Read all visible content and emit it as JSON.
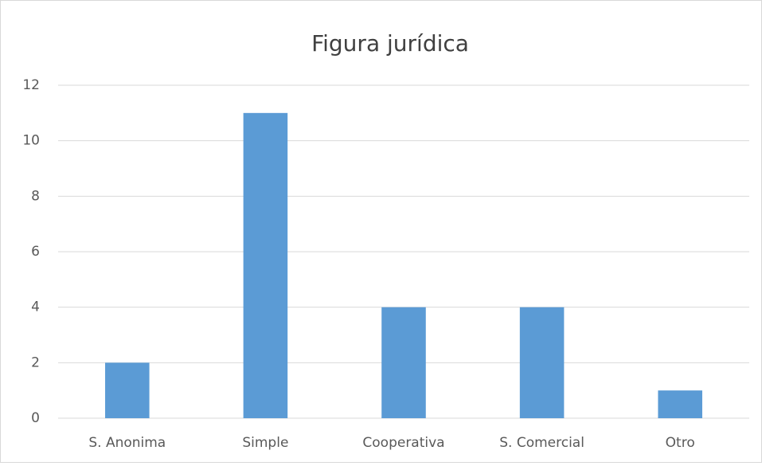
{
  "chart_data": {
    "type": "bar",
    "title": "Figura jurídica",
    "categories": [
      "S. Anonima",
      "Simple",
      "Cooperativa",
      "S. Comercial",
      "Otro"
    ],
    "values": [
      2,
      11,
      4,
      4,
      1
    ],
    "color": "#5b9bd5",
    "ylim": [
      0,
      12
    ],
    "yticks": [
      0,
      2,
      4,
      6,
      8,
      10,
      12
    ],
    "grid": true
  }
}
